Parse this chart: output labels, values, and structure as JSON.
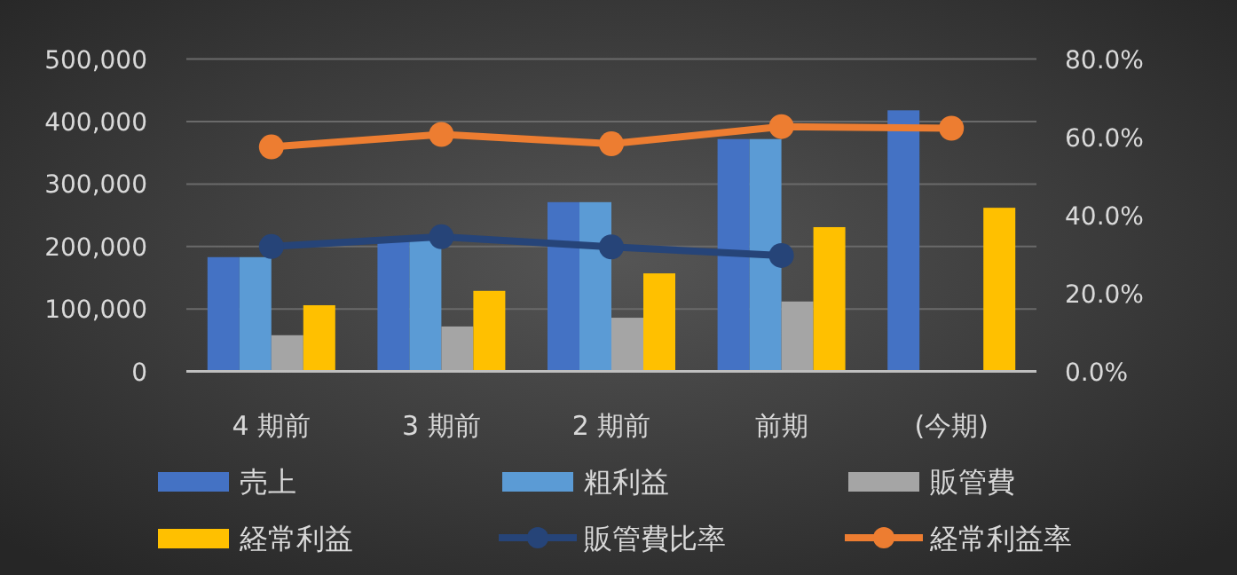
{
  "chart_data": {
    "type": "bar",
    "categories": [
      "4 期前",
      "3 期前",
      "2 期前",
      "前期",
      "(今期)"
    ],
    "series": [
      {
        "name": "売上",
        "color": "#4472c4",
        "values": [
          183000,
          215000,
          271000,
          372000,
          418000
        ]
      },
      {
        "name": "粗利益",
        "color": "#5b9bd5",
        "values": [
          183000,
          215000,
          271000,
          372000,
          null
        ]
      },
      {
        "name": "販管費",
        "color": "#a5a5a5",
        "values": [
          58000,
          72000,
          86000,
          112000,
          null
        ]
      },
      {
        "name": "経常利益",
        "color": "#ffc000",
        "values": [
          106000,
          129000,
          157000,
          231000,
          262000
        ]
      },
      {
        "name": "販管費比率",
        "type": "line",
        "axis": "y2",
        "color": "#264478",
        "values": [
          32.0,
          34.5,
          31.9,
          29.7,
          null
        ]
      },
      {
        "name": "経常利益率",
        "type": "line",
        "axis": "y2",
        "color": "#ed7d31",
        "values": [
          57.5,
          60.7,
          58.3,
          62.7,
          62.3
        ]
      }
    ],
    "ylim": [
      0,
      500000
    ],
    "yticks": [
      0,
      {
        "value": 100000,
        "label": "100,000"
      },
      {
        "value": 200000,
        "label": "200,000"
      },
      {
        "value": 300000,
        "label": "300,000"
      },
      {
        "value": 400000,
        "label": "400,000"
      },
      {
        "value": 500000,
        "label": "500,000"
      }
    ],
    "y2lim": [
      0,
      80
    ],
    "y2ticks": [
      {
        "value": 0,
        "label": "0.0%"
      },
      {
        "value": 20,
        "label": "20.0%"
      },
      {
        "value": 40,
        "label": "40.0%"
      },
      {
        "value": 60,
        "label": "60.0%"
      },
      {
        "value": 80,
        "label": "80.0%"
      }
    ],
    "grid": "y",
    "legend": "bottom",
    "marker": "circle",
    "line_style": "solid"
  }
}
